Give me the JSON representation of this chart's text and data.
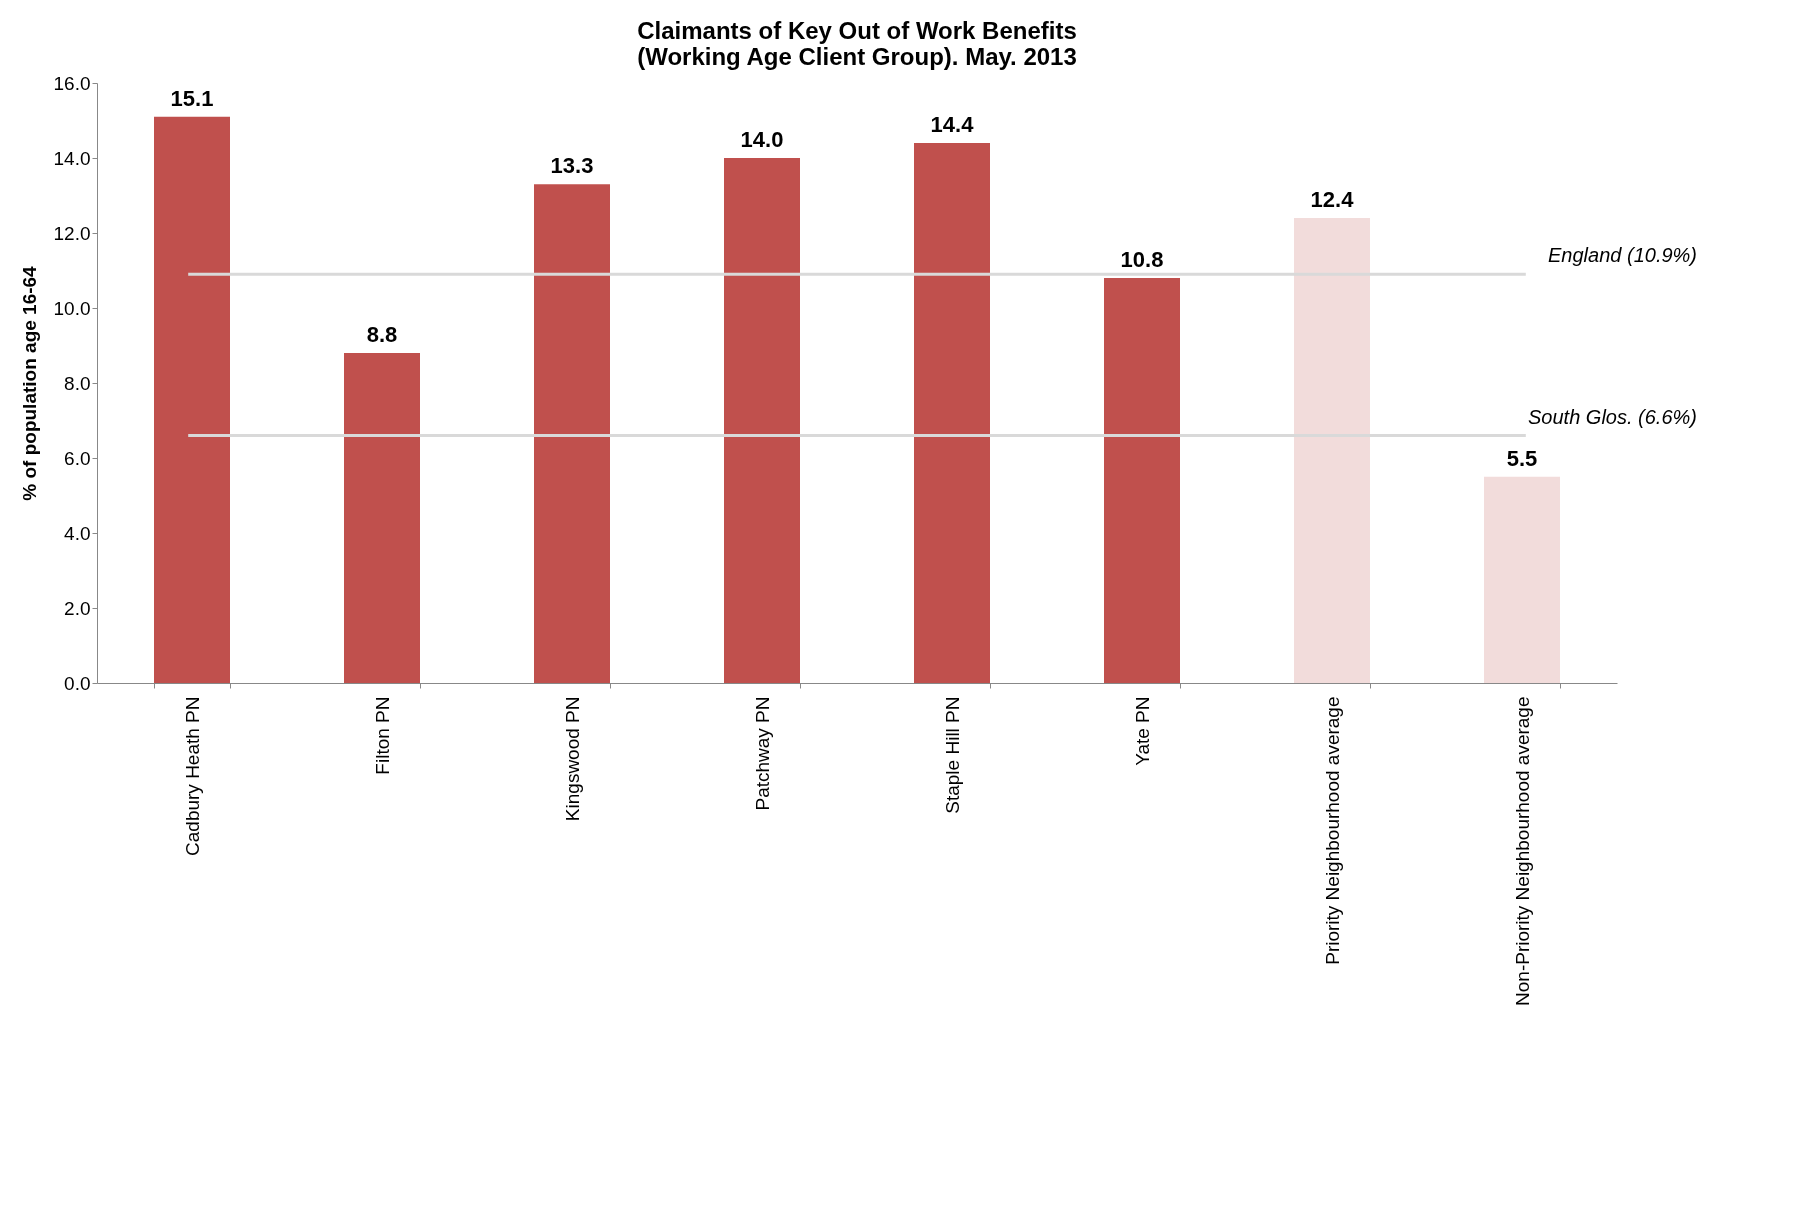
{
  "chart_data": {
    "type": "bar",
    "title": [
      "Claimants of Key Out of Work Benefits",
      "(Working Age Client Group).   May. 2013"
    ],
    "ylabel": "% of population age 16-64",
    "categories": [
      "Cadbury Heath PN",
      "Filton PN",
      "Kingswood PN",
      "Patchway PN",
      "Staple Hill PN",
      "Yate PN",
      "Priority Neighbourhood average",
      "Non-Priority Neighbourhood average"
    ],
    "values": [
      15.1,
      8.8,
      13.3,
      14.0,
      14.4,
      10.8,
      12.4,
      5.5
    ],
    "value_labels": [
      "15.1",
      "8.8",
      "13.3",
      "14.0",
      "14.4",
      "10.8",
      "12.4",
      "5.5"
    ],
    "colors": [
      "#c0504d",
      "#c0504d",
      "#c0504d",
      "#c0504d",
      "#c0504d",
      "#c0504d",
      "#f2dcdb",
      "#f2dcdb"
    ],
    "ylim": [
      0,
      16
    ],
    "yticks": [
      {
        "value": 0,
        "label": "0.0"
      },
      {
        "value": 2,
        "label": "2.0"
      },
      {
        "value": 4,
        "label": "4.0"
      },
      {
        "value": 6,
        "label": "6.0"
      },
      {
        "value": 8,
        "label": "8.0"
      },
      {
        "value": 10,
        "label": "10.0"
      },
      {
        "value": 12,
        "label": "12.0"
      },
      {
        "value": 14,
        "label": "14.0"
      },
      {
        "value": 16,
        "label": "16.0"
      }
    ],
    "ref_lines": [
      {
        "axis": "y",
        "value": 10.9,
        "label": "England (10.9%)",
        "color": "#d9d9d9"
      },
      {
        "axis": "y",
        "value": 6.6,
        "label": "South Glos. (6.6%)",
        "color": "#d9d9d9"
      }
    ],
    "grid": false
  }
}
